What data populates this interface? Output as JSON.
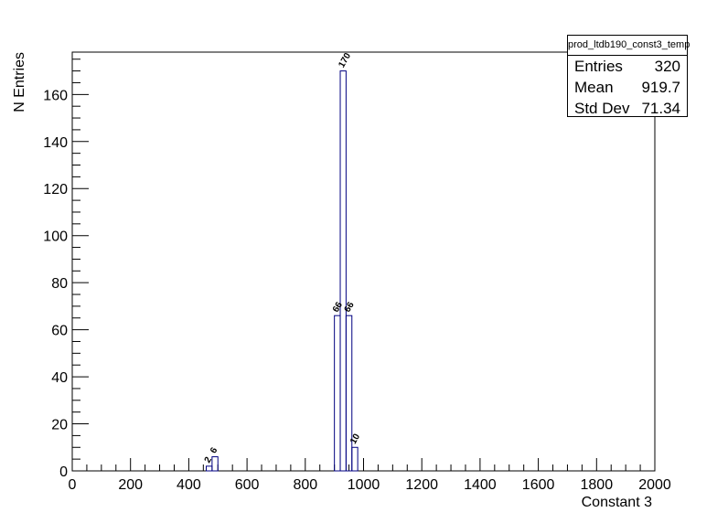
{
  "chart_data": {
    "type": "bar",
    "histogram_name": "prod_ltdb190_const3_temp",
    "xlabel": "Constant 3",
    "ylabel": "N Entries",
    "xlim": [
      0,
      2000
    ],
    "ylim": [
      0,
      178
    ],
    "bin_width": 20,
    "x_ticks": [
      0,
      200,
      400,
      600,
      800,
      1000,
      1200,
      1400,
      1600,
      1800,
      2000
    ],
    "y_ticks": [
      0,
      20,
      40,
      60,
      80,
      100,
      120,
      140,
      160
    ],
    "bins": [
      {
        "x0": 460,
        "x1": 480,
        "value": 2
      },
      {
        "x0": 480,
        "x1": 500,
        "value": 6
      },
      {
        "x0": 900,
        "x1": 920,
        "value": 66
      },
      {
        "x0": 920,
        "x1": 940,
        "value": 170
      },
      {
        "x0": 940,
        "x1": 960,
        "value": 66
      },
      {
        "x0": 960,
        "x1": 980,
        "value": 10
      }
    ],
    "line_color": "#000080",
    "grid": false
  },
  "stats": {
    "title": "prod_ltdb190_const3_temp",
    "rows": [
      {
        "label": "Entries",
        "value": "320"
      },
      {
        "label": "Mean",
        "value": "919.7"
      },
      {
        "label": "Std Dev",
        "value": "71.34"
      }
    ]
  }
}
